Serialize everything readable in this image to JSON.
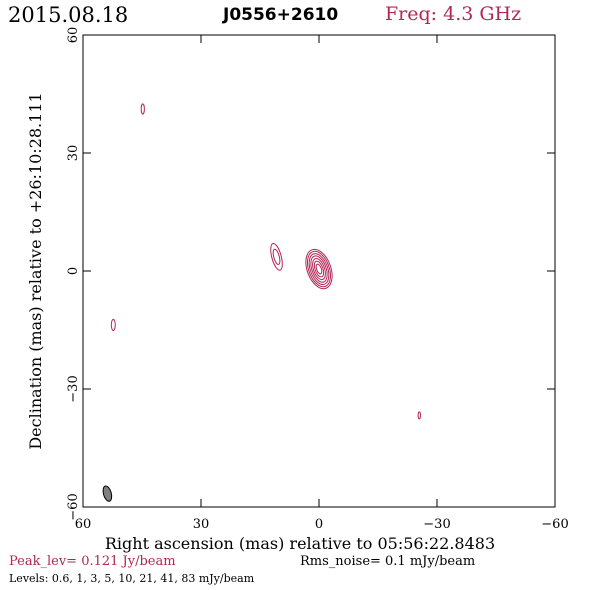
{
  "header": {
    "date": "2015.08.18",
    "source": "J0556+2610",
    "freq": "Freq: 4.3 GHz"
  },
  "footer": {
    "peak": "Peak_lev=  0.121 Jy/beam",
    "rms": "Rms_noise=  0.1 mJy/beam",
    "levels": "Levels: 0.6,   1,   3,   5,  10,  21,  41,  83 mJy/beam"
  },
  "colors": {
    "contour": "#b22655",
    "axis": "#000000",
    "beam": "#7f7f7f"
  },
  "chart_data": {
    "type": "contour",
    "xlabel": "Right ascension (mas) relative to 05:56:22.8483",
    "ylabel": "Declination (mas) relative to +26:10:28.111",
    "xlim": [
      60,
      -60
    ],
    "ylim": [
      -60,
      60
    ],
    "xticks": [
      60,
      30,
      0,
      -30,
      -60
    ],
    "yticks": [
      60,
      30,
      0,
      -30,
      -60
    ],
    "xtick_labels": [
      "60",
      "30",
      "0",
      "−30",
      "−60"
    ],
    "ytick_labels": [
      "60",
      "30",
      "0",
      "−30",
      "−60"
    ],
    "contour_levels_mJy": [
      0.6,
      1,
      3,
      5,
      10,
      21,
      41,
      83
    ],
    "components": [
      {
        "x": 0.0,
        "y": 0.5,
        "rings": [
          [
            3.0,
            5.2
          ],
          [
            2.6,
            4.7
          ],
          [
            2.2,
            4.1
          ],
          [
            1.8,
            3.5
          ],
          [
            1.4,
            2.8
          ],
          [
            1.0,
            2.1
          ],
          [
            0.6,
            1.3
          ]
        ],
        "rotation_deg": -20
      },
      {
        "x": 10.8,
        "y": 3.6,
        "rings": [
          [
            1.2,
            3.5
          ],
          [
            0.7,
            2.0
          ]
        ],
        "rotation_deg": -15
      },
      {
        "x": 52.3,
        "y": -13.7,
        "rings": [
          [
            0.5,
            1.4
          ]
        ],
        "rotation_deg": 0
      },
      {
        "x": 44.8,
        "y": 41.2,
        "rings": [
          [
            0.4,
            1.3
          ]
        ],
        "rotation_deg": 0
      },
      {
        "x": -25.5,
        "y": -36.7,
        "rings": [
          [
            0.3,
            0.9
          ]
        ],
        "rotation_deg": 0
      }
    ],
    "beam": {
      "x": 53.8,
      "y": -56.6,
      "a": 1.0,
      "b": 2.0,
      "rotation_deg": -15
    }
  }
}
